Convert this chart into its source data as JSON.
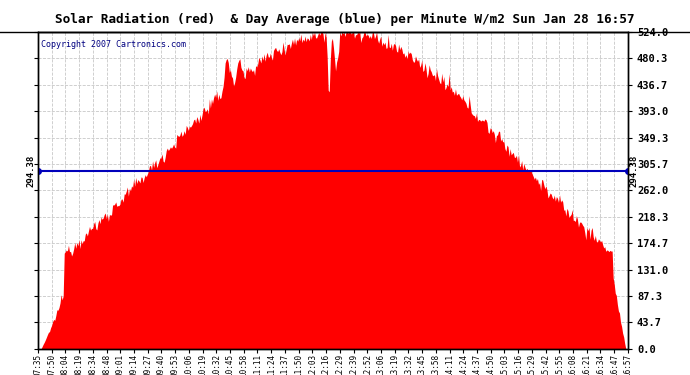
{
  "title": "Solar Radiation (red)  & Day Average (blue) per Minute W/m2 Sun Jan 28 16:57",
  "copyright": "Copyright 2007 Cartronics.com",
  "y_max": 524.0,
  "y_ticks": [
    0.0,
    43.7,
    87.3,
    131.0,
    174.7,
    218.3,
    262.0,
    305.7,
    349.3,
    393.0,
    436.7,
    480.3,
    524.0
  ],
  "day_average": 294.38,
  "avg_label": "294.38",
  "bar_color": "#FF0000",
  "avg_line_color": "#0000BB",
  "background_color": "#FFFFFF",
  "plot_bg_color": "#FFFFFF",
  "grid_color": "#C8C8C8",
  "title_color": "#000000",
  "x_tick_labels": [
    "07:35",
    "07:50",
    "08:04",
    "08:19",
    "08:34",
    "08:48",
    "09:01",
    "09:14",
    "09:27",
    "09:40",
    "09:53",
    "10:06",
    "10:19",
    "10:32",
    "10:45",
    "10:58",
    "11:11",
    "11:24",
    "11:37",
    "11:50",
    "12:03",
    "12:16",
    "12:29",
    "12:39",
    "12:52",
    "13:06",
    "13:19",
    "13:32",
    "13:45",
    "13:58",
    "14:11",
    "14:24",
    "14:37",
    "14:50",
    "15:03",
    "15:16",
    "15:29",
    "15:42",
    "15:55",
    "16:08",
    "16:21",
    "16:34",
    "16:47",
    "16:57"
  ]
}
